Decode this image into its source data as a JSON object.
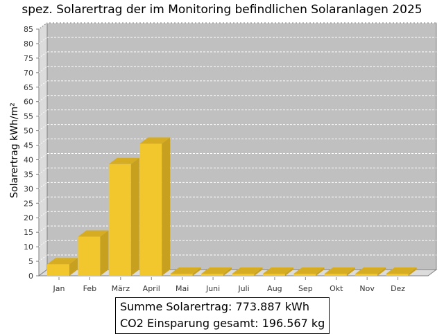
{
  "chart_data": {
    "type": "bar",
    "title": "spez. Solarertrag der im Monitoring befindlichen Solaranlagen 2025",
    "ylabel": "Solarertrag kWh/m²",
    "xlabel": "",
    "categories": [
      "Jan",
      "Feb",
      "März",
      "April",
      "Mai",
      "Juni",
      "Juli",
      "Aug",
      "Sep",
      "Okt",
      "Nov",
      "Dez"
    ],
    "values": [
      4,
      13.5,
      38.5,
      45.5,
      0,
      0,
      0,
      0,
      0,
      0,
      0,
      0
    ],
    "ylim": [
      0,
      85
    ],
    "yticks": [
      "0",
      "5",
      "10",
      "15",
      "20",
      "25",
      "30",
      "35",
      "40",
      "45",
      "50",
      "55",
      "60",
      "65",
      "70",
      "75",
      "80",
      "85"
    ],
    "grid": true,
    "legend": "none",
    "colors": {
      "bar_front": "#f2c62d",
      "bar_side": "#c8a020",
      "bar_top": "#d6ad22",
      "plot_background": "#c0c0c0",
      "wall": "#dcdcdc",
      "grid": "#ffffff"
    }
  },
  "summary": {
    "line1": "Summe Solarertrag: 773.887 kWh",
    "line2": "CO2 Einsparung gesamt: 196.567 kg"
  }
}
